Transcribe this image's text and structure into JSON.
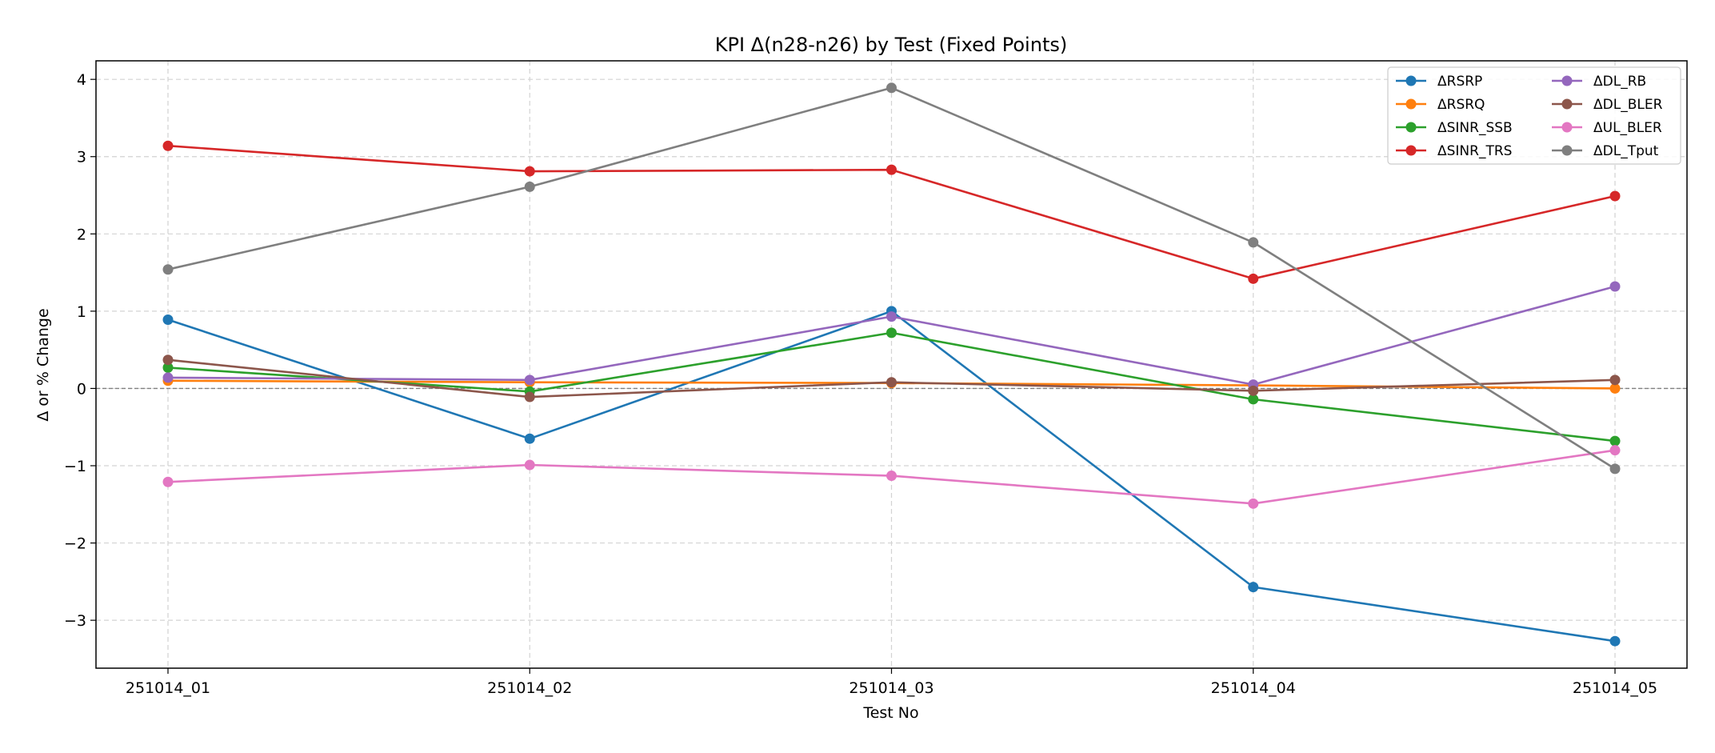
{
  "chart_data": {
    "type": "line",
    "title": "KPI Δ(n28-n26) by Test (Fixed Points)",
    "xlabel": "Test No",
    "ylabel": "Δ or % Change",
    "categories": [
      "251014_01",
      "251014_02",
      "251014_03",
      "251014_04",
      "251014_05"
    ],
    "ylim": [
      -3.62,
      4.24
    ],
    "yticks": [
      -3,
      -2,
      -1,
      0,
      1,
      2,
      3,
      4
    ],
    "ytick_labels": [
      "−3",
      "−2",
      "−1",
      "0",
      "1",
      "2",
      "3",
      "4"
    ],
    "grid": true,
    "reference_line_y": 0,
    "legend_position": "top-right",
    "legend_columns": 2,
    "series": [
      {
        "name": "ΔRSRP",
        "color": "#1f77b4",
        "values": [
          0.89,
          -0.65,
          1.0,
          -2.57,
          -3.27
        ]
      },
      {
        "name": "ΔRSRQ",
        "color": "#ff7f0e",
        "values": [
          0.1,
          0.08,
          0.07,
          0.04,
          0.0
        ]
      },
      {
        "name": "ΔSINR_SSB",
        "color": "#2ca02c",
        "values": [
          0.27,
          -0.04,
          0.72,
          -0.14,
          -0.68
        ]
      },
      {
        "name": "ΔSINR_TRS",
        "color": "#d62728",
        "values": [
          3.14,
          2.81,
          2.83,
          1.42,
          2.49
        ]
      },
      {
        "name": "ΔDL_RB",
        "color": "#9467bd",
        "values": [
          0.14,
          0.11,
          0.93,
          0.05,
          1.32
        ]
      },
      {
        "name": "ΔDL_BLER",
        "color": "#8c564b",
        "values": [
          0.37,
          -0.11,
          0.08,
          -0.03,
          0.11
        ]
      },
      {
        "name": "ΔUL_BLER",
        "color": "#e377c2",
        "values": [
          -1.21,
          -0.99,
          -1.13,
          -1.49,
          -0.8
        ]
      },
      {
        "name": "ΔDL_Tput",
        "color": "#7f7f7f",
        "values": [
          1.54,
          2.61,
          3.89,
          1.89,
          -1.04
        ]
      }
    ]
  }
}
